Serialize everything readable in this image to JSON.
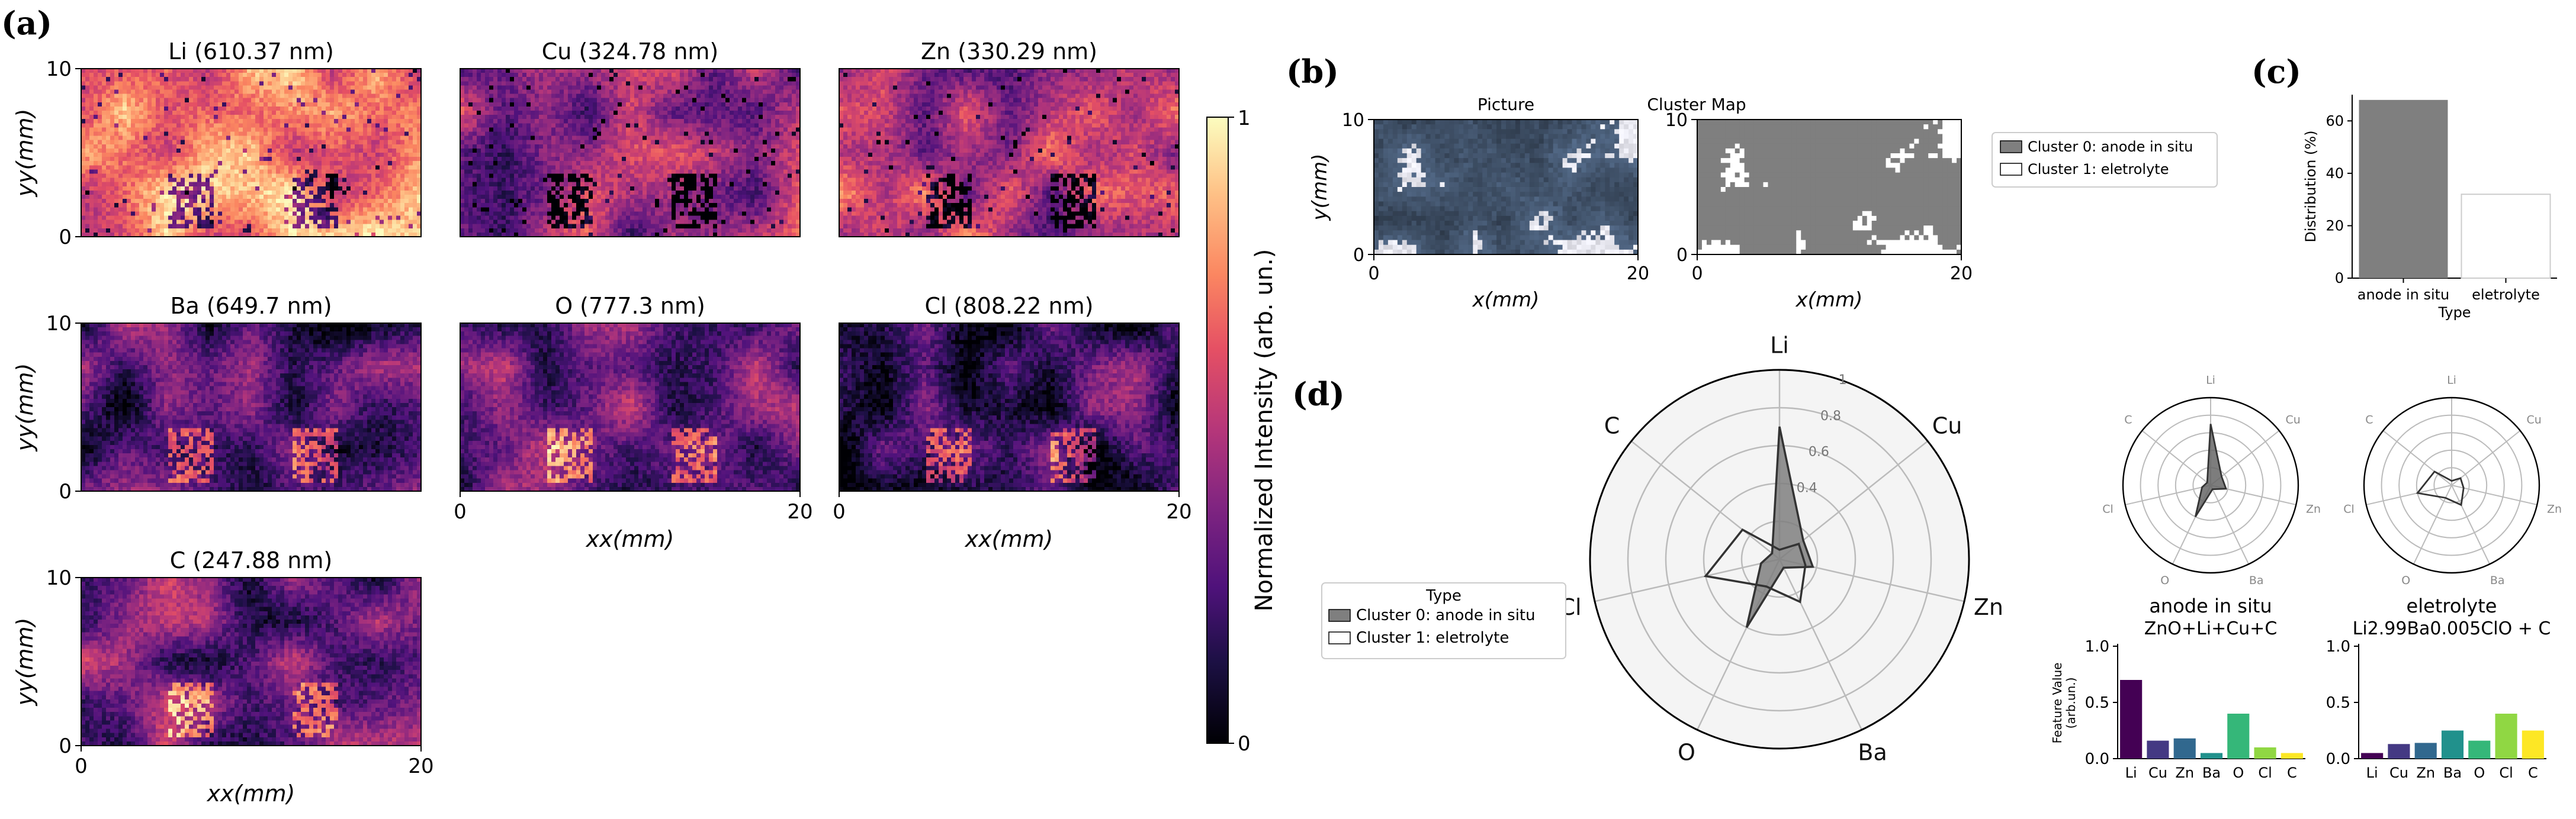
{
  "panels": {
    "a": {
      "label": "(a)"
    },
    "b": {
      "label": "(b)"
    },
    "c": {
      "label": "(c)"
    },
    "d": {
      "label": "(d)"
    }
  },
  "a": {
    "maps": [
      {
        "title": "Li (610.37 nm)",
        "ylabel": "yy(mm)",
        "xlabel": "",
        "yticks": [
          "10",
          "0"
        ],
        "xticks": [],
        "mean": 0.74,
        "seed": 11,
        "blobs": "dark"
      },
      {
        "title": "Cu (324.78 nm)",
        "ylabel": "",
        "xlabel": "",
        "yticks": [],
        "xticks": [],
        "mean": 0.42,
        "seed": 23,
        "blobs": "dark"
      },
      {
        "title": "Zn (330.29 nm)",
        "ylabel": "",
        "xlabel": "",
        "yticks": [],
        "xticks": [],
        "mean": 0.52,
        "seed": 37,
        "blobs": "dark"
      },
      {
        "title": "Ba (649.7 nm)",
        "ylabel": "yy(mm)",
        "xlabel": "",
        "yticks": [
          "10",
          "0"
        ],
        "xticks": [],
        "mean": 0.22,
        "seed": 41,
        "blobs": "bright"
      },
      {
        "title": "O (777.3 nm)",
        "ylabel": "",
        "xlabel": "xx(mm)",
        "yticks": [],
        "xticks": [
          "0",
          "20"
        ],
        "mean": 0.36,
        "seed": 53,
        "blobs": "bright"
      },
      {
        "title": "Cl (808.22 nm)",
        "ylabel": "",
        "xlabel": "xx(mm)",
        "yticks": [],
        "xticks": [
          "0",
          "20"
        ],
        "mean": 0.22,
        "seed": 67,
        "blobs": "bright"
      },
      {
        "title": "C (247.88 nm)",
        "ylabel": "yy(mm)",
        "xlabel": "xx(mm)",
        "yticks": [
          "10",
          "0"
        ],
        "xticks": [
          "0",
          "20"
        ],
        "mean": 0.34,
        "seed": 79,
        "blobs": "bright"
      }
    ],
    "colorbar": {
      "label": "Normalized Intensity (arb. un.)",
      "ticks": [
        "1",
        "0"
      ],
      "colormap": "magma",
      "range": [
        0,
        1
      ]
    }
  },
  "b": {
    "picture_title": "Picture",
    "cluster_title": "Cluster Map",
    "xlabel": "x(mm)",
    "ylabel": "y(mm)",
    "xticks": [
      "0",
      "20"
    ],
    "yticks": [
      "10",
      "0"
    ],
    "legend": [
      "Cluster 0: anode in situ",
      "Cluster 1: eletrolyte"
    ],
    "colors": {
      "cluster0": "#7f7f7f",
      "cluster1": "#ffffff"
    }
  },
  "d": {
    "legend_title": "Type",
    "legend": [
      "Cluster 0: anode in situ",
      "Cluster 1: eletrolyte"
    ],
    "small": [
      {
        "title1": "anode in situ",
        "title2": "ZnO+Li+Cu+C",
        "fill": "#666666"
      },
      {
        "title1": "eletrolyte",
        "title2": "Li2.99Ba0.005ClO + C",
        "fill": "none"
      }
    ],
    "bar_ylabel": [
      "Feature Value",
      "(arb.un.)"
    ]
  },
  "chart_data": [
    {
      "type": "bar",
      "panel": "c",
      "categories": [
        "anode in situ",
        "eletrolyte"
      ],
      "values": [
        68,
        32
      ],
      "xlabel": "Type",
      "ylabel": "Distribution (%)",
      "ylim": [
        0,
        70
      ],
      "yticks": [
        "0",
        "20",
        "40",
        "60"
      ],
      "colors": [
        "#7f7f7f",
        "#ffffff"
      ]
    },
    {
      "type": "radar",
      "panel": "d",
      "axes": [
        "Li",
        "Cu",
        "Zn",
        "Ba",
        "O",
        "Cl",
        "C"
      ],
      "rticks": [
        "0.4",
        "0.6",
        "0.8",
        "1"
      ],
      "rlim": [
        0,
        1
      ],
      "series": [
        {
          "name": "Cluster 0: anode in situ",
          "values": [
            0.7,
            0.16,
            0.18,
            0.05,
            0.4,
            0.1,
            0.05
          ]
        },
        {
          "name": "Cluster 1: eletrolyte",
          "values": [
            0.05,
            0.13,
            0.14,
            0.25,
            0.16,
            0.4,
            0.25
          ]
        }
      ]
    },
    {
      "type": "bar",
      "panel": "d",
      "categories": [
        "Li",
        "Cu",
        "Zn",
        "Ba",
        "O",
        "Cl",
        "C"
      ],
      "values": [
        0.7,
        0.16,
        0.18,
        0.05,
        0.4,
        0.1,
        0.05
      ],
      "ylim": [
        0,
        1
      ],
      "yticks": [
        "0.0",
        "0.5",
        "1.0"
      ],
      "colors": [
        "#440154",
        "#443983",
        "#31688e",
        "#21918c",
        "#35b779",
        "#90d743",
        "#fde725"
      ]
    },
    {
      "type": "bar",
      "panel": "d",
      "categories": [
        "Li",
        "Cu",
        "Zn",
        "Ba",
        "O",
        "Cl",
        "C"
      ],
      "values": [
        0.05,
        0.13,
        0.14,
        0.25,
        0.16,
        0.4,
        0.25
      ],
      "ylim": [
        0,
        1
      ],
      "yticks": [
        "0.0",
        "0.5",
        "1.0"
      ],
      "colors": [
        "#440154",
        "#443983",
        "#31688e",
        "#21918c",
        "#35b779",
        "#90d743",
        "#fde725"
      ]
    }
  ]
}
